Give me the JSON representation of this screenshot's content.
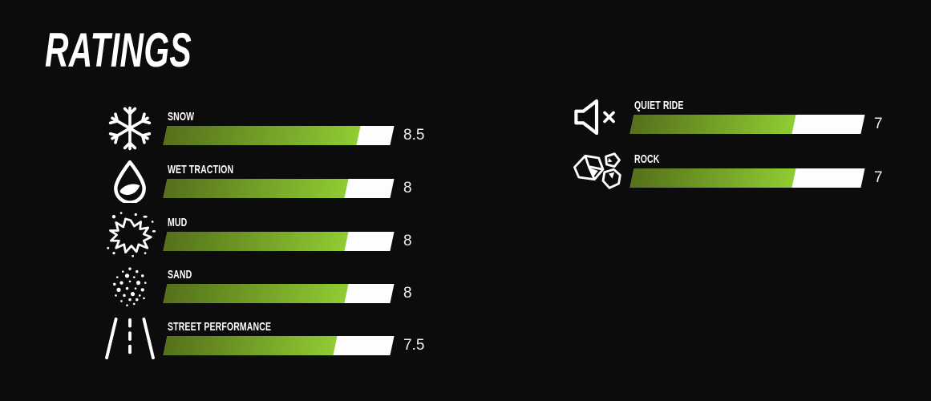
{
  "title": "RATINGS",
  "scale_max": 10,
  "colors": {
    "background": "#0c0c0c",
    "bar_fill_gradient_start": "#55701a",
    "bar_fill_gradient_end": "#90cc33",
    "bar_track": "#fdfdfd",
    "text": "#ffffff"
  },
  "ratings": {
    "left": [
      {
        "label": "SNOW",
        "value": "8.5",
        "score": 8.5,
        "icon": "snowflake-icon"
      },
      {
        "label": "WET TRACTION",
        "value": "8",
        "score": 8,
        "icon": "water-drop-icon"
      },
      {
        "label": "MUD",
        "value": "8",
        "score": 8,
        "icon": "mud-splat-icon"
      },
      {
        "label": "SAND",
        "value": "8",
        "score": 8,
        "icon": "sand-icon"
      },
      {
        "label": "STREET PERFORMANCE",
        "value": "7.5",
        "score": 7.5,
        "icon": "road-icon"
      }
    ],
    "right": [
      {
        "label": "QUIET RIDE",
        "value": "7",
        "score": 7,
        "icon": "speaker-muted-icon"
      },
      {
        "label": "ROCK",
        "value": "7",
        "score": 7,
        "icon": "rock-icon"
      }
    ]
  },
  "chart_data": {
    "type": "bar",
    "orientation": "horizontal",
    "title": "RATINGS",
    "categories": [
      "SNOW",
      "WET TRACTION",
      "MUD",
      "SAND",
      "STREET PERFORMANCE",
      "QUIET RIDE",
      "ROCK"
    ],
    "values": [
      8.5,
      8,
      8,
      8,
      7.5,
      7,
      7
    ],
    "value_labels": [
      "8.5",
      "8",
      "8",
      "8",
      "7.5",
      "7",
      "7"
    ],
    "xlim": [
      0,
      10
    ],
    "legend": "none",
    "grid": "off"
  }
}
